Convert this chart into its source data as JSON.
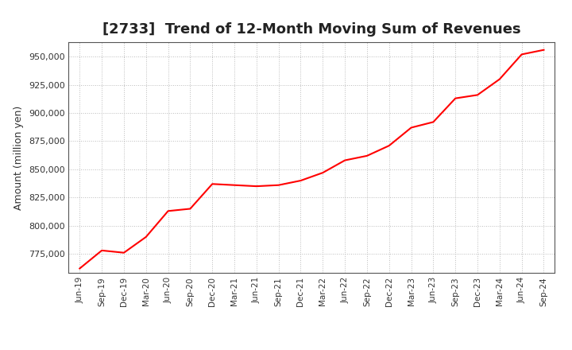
{
  "title": "[2733]  Trend of 12-Month Moving Sum of Revenues",
  "ylabel": "Amount (million yen)",
  "line_color": "#ff0000",
  "line_width": 1.5,
  "background_color": "#ffffff",
  "grid_color": "#bbbbbb",
  "ylim": [
    758000,
    963000
  ],
  "yticks": [
    775000,
    800000,
    825000,
    850000,
    875000,
    900000,
    925000,
    950000
  ],
  "x_labels": [
    "Jun-19",
    "Sep-19",
    "Dec-19",
    "Mar-20",
    "Jun-20",
    "Sep-20",
    "Dec-20",
    "Mar-21",
    "Jun-21",
    "Sep-21",
    "Dec-21",
    "Mar-22",
    "Jun-22",
    "Sep-22",
    "Dec-22",
    "Mar-23",
    "Jun-23",
    "Sep-23",
    "Dec-23",
    "Mar-24",
    "Jun-24",
    "Sep-24"
  ],
  "values": [
    762000,
    778000,
    776000,
    790000,
    813000,
    815000,
    837000,
    836000,
    835000,
    836000,
    840000,
    847000,
    858000,
    862000,
    871000,
    887000,
    892000,
    913000,
    916000,
    930000,
    952000,
    956000
  ],
  "title_fontsize": 13,
  "ylabel_fontsize": 9,
  "tick_fontsize": 8,
  "xtick_fontsize": 7.5
}
